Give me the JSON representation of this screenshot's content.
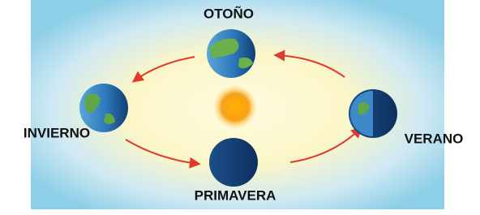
{
  "seasons": [
    "OTOÑO",
    "INVIERNO",
    "VERANO",
    "PRIMAVERA"
  ]
}
